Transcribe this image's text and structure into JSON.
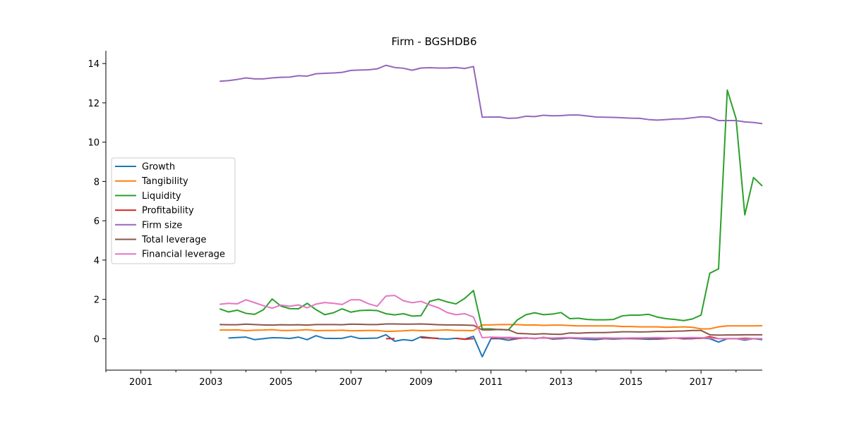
{
  "chart_data": {
    "type": "line",
    "title": "Firm - BGSHDB6",
    "xlabel": "",
    "ylabel": "",
    "xlim": [
      2000.0,
      2018.75
    ],
    "ylim": [
      -1.6,
      14.65
    ],
    "x_ticks": [
      "2001",
      "2003",
      "2005",
      "2007",
      "2009",
      "2011",
      "2013",
      "2015",
      "2017"
    ],
    "y_ticks": [
      "0",
      "2",
      "4",
      "6",
      "8",
      "10",
      "12",
      "14"
    ],
    "grid": false,
    "legend_position": "center-left",
    "series": [
      {
        "name": "Growth",
        "color": "#1f77b4",
        "x": [
          2003.5,
          2003.75,
          2004.0,
          2004.25,
          2004.5,
          2004.75,
          2005.0,
          2005.25,
          2005.5,
          2005.75,
          2006.0,
          2006.25,
          2006.5,
          2006.75,
          2007.0,
          2007.25,
          2007.5,
          2007.75,
          2008.0,
          2008.25,
          2008.5,
          2008.75,
          2009.0,
          2009.25,
          2009.5,
          2009.75,
          2010.0,
          2010.25,
          2010.5,
          2010.75,
          2011.0,
          2011.25,
          2011.5,
          2011.75,
          2012.0,
          2012.25,
          2012.5,
          2012.75,
          2013.0,
          2013.25,
          2013.5,
          2013.75,
          2014.0,
          2014.25,
          2014.5,
          2014.75,
          2015.0,
          2015.25,
          2015.5,
          2015.75,
          2016.0,
          2016.25,
          2016.5,
          2016.75,
          2017.0,
          2017.25,
          2017.5,
          2017.75,
          2018.0,
          2018.25,
          2018.5,
          2018.75
        ],
        "y": [
          0.03,
          0.06,
          0.08,
          -0.05,
          0.0,
          0.05,
          0.04,
          0.01,
          0.08,
          -0.05,
          0.15,
          0.02,
          0.01,
          0.02,
          0.12,
          0.01,
          0.02,
          0.03,
          0.2,
          -0.13,
          -0.05,
          -0.1,
          0.1,
          0.05,
          0.0,
          -0.02,
          0.02,
          -0.02,
          0.12,
          -0.92,
          0.0,
          0.0,
          -0.08,
          0.0,
          0.05,
          0.0,
          0.07,
          -0.02,
          0.0,
          0.03,
          0.0,
          -0.03,
          -0.05,
          0.0,
          -0.02,
          0.0,
          0.0,
          -0.01,
          -0.03,
          -0.02,
          0.0,
          0.04,
          -0.01,
          0.0,
          0.03,
          0.0,
          -0.17,
          0.0,
          0.0,
          -0.07,
          0.0,
          -0.05
        ]
      },
      {
        "name": "Tangibility",
        "color": "#ff7f0e",
        "x": [
          2003.25,
          2003.5,
          2003.75,
          2004.0,
          2004.25,
          2004.5,
          2004.75,
          2005.0,
          2005.25,
          2005.5,
          2005.75,
          2006.0,
          2006.25,
          2006.5,
          2006.75,
          2007.0,
          2007.25,
          2007.5,
          2007.75,
          2008.0,
          2008.25,
          2008.5,
          2008.75,
          2009.0,
          2009.25,
          2009.5,
          2009.75,
          2010.0,
          2010.25,
          2010.5,
          2010.75,
          2011.0,
          2011.25,
          2011.5,
          2011.75,
          2012.0,
          2012.25,
          2012.5,
          2012.75,
          2013.0,
          2013.25,
          2013.5,
          2013.75,
          2014.0,
          2014.25,
          2014.5,
          2014.75,
          2015.0,
          2015.25,
          2015.5,
          2015.75,
          2016.0,
          2016.25,
          2016.5,
          2016.75,
          2017.0,
          2017.25,
          2017.5,
          2017.75,
          2018.0,
          2018.25,
          2018.5,
          2018.75
        ],
        "y": [
          0.44,
          0.44,
          0.45,
          0.41,
          0.43,
          0.44,
          0.46,
          0.42,
          0.42,
          0.43,
          0.46,
          0.41,
          0.42,
          0.42,
          0.43,
          0.4,
          0.41,
          0.42,
          0.42,
          0.37,
          0.38,
          0.4,
          0.43,
          0.41,
          0.42,
          0.43,
          0.45,
          0.42,
          0.42,
          0.41,
          0.7,
          0.7,
          0.72,
          0.72,
          0.72,
          0.69,
          0.7,
          0.68,
          0.69,
          0.69,
          0.67,
          0.65,
          0.65,
          0.65,
          0.65,
          0.65,
          0.62,
          0.62,
          0.6,
          0.6,
          0.6,
          0.58,
          0.59,
          0.6,
          0.58,
          0.5,
          0.5,
          0.6,
          0.65,
          0.65,
          0.65,
          0.65,
          0.66
        ]
      },
      {
        "name": "Liquidity",
        "color": "#2ca02c",
        "x": [
          2003.25,
          2003.5,
          2003.75,
          2004.0,
          2004.25,
          2004.5,
          2004.75,
          2005.0,
          2005.25,
          2005.5,
          2005.75,
          2006.0,
          2006.25,
          2006.5,
          2006.75,
          2007.0,
          2007.25,
          2007.5,
          2007.75,
          2008.0,
          2008.25,
          2008.5,
          2008.75,
          2009.0,
          2009.25,
          2009.5,
          2009.75,
          2010.0,
          2010.25,
          2010.5,
          2010.75,
          2011.0,
          2011.25,
          2011.5,
          2011.75,
          2012.0,
          2012.25,
          2012.5,
          2012.75,
          2013.0,
          2013.25,
          2013.5,
          2013.75,
          2014.0,
          2014.25,
          2014.5,
          2014.75,
          2015.0,
          2015.25,
          2015.5,
          2015.75,
          2016.0,
          2016.25,
          2016.5,
          2016.75,
          2017.0,
          2017.25,
          2017.5,
          2017.75,
          2018.0,
          2018.25,
          2018.5,
          2018.75
        ],
        "y": [
          1.52,
          1.36,
          1.45,
          1.29,
          1.24,
          1.47,
          2.02,
          1.66,
          1.53,
          1.52,
          1.8,
          1.48,
          1.22,
          1.32,
          1.52,
          1.35,
          1.43,
          1.45,
          1.43,
          1.27,
          1.21,
          1.27,
          1.15,
          1.17,
          1.9,
          2.01,
          1.87,
          1.77,
          2.05,
          2.45,
          0.5,
          0.5,
          0.46,
          0.45,
          0.95,
          1.22,
          1.32,
          1.22,
          1.25,
          1.33,
          1.02,
          1.04,
          0.98,
          0.96,
          0.96,
          0.98,
          1.16,
          1.2,
          1.2,
          1.24,
          1.1,
          1.02,
          0.98,
          0.92,
          1.0,
          1.2,
          3.33,
          3.55,
          12.65,
          11.2,
          6.3,
          8.2,
          7.77
        ]
      },
      {
        "name": "Profitability",
        "color": "#d62728",
        "x": [
          2008.0,
          2008.25,
          null,
          2009.0,
          2009.25,
          2009.5,
          null,
          2010.0,
          2010.25,
          2010.5,
          null,
          2011.0,
          2011.25,
          2011.5,
          2011.75,
          2012.0,
          2012.25,
          2012.5,
          2012.75,
          2013.0,
          2013.25,
          2013.5,
          2013.75,
          2014.0,
          2014.25,
          2014.5,
          2014.75,
          2015.0,
          2015.25,
          2015.5,
          2015.75,
          2016.0,
          2016.25,
          2016.5,
          2016.75,
          2017.0,
          2017.25,
          2017.5,
          2017.75,
          2018.0,
          2018.25,
          2018.5,
          2018.75
        ],
        "y": [
          0.0,
          0.0,
          null,
          0.05,
          0.03,
          0.02,
          null,
          0.02,
          -0.03,
          0.0,
          null,
          0.03,
          0.05,
          0.03,
          0.02,
          0.03,
          0.02,
          0.04,
          0.02,
          0.03,
          0.05,
          0.03,
          0.03,
          0.02,
          0.02,
          0.02,
          0.02,
          0.02,
          0.02,
          0.03,
          0.02,
          0.02,
          0.03,
          0.02,
          0.03,
          0.02,
          0.1,
          0.0,
          0.0,
          0.0,
          0.02,
          0.0,
          0.0
        ]
      },
      {
        "name": "Firm size",
        "color": "#9467bd",
        "x": [
          2003.25,
          2003.5,
          2003.75,
          2004.0,
          2004.25,
          2004.5,
          2004.75,
          2005.0,
          2005.25,
          2005.5,
          2005.75,
          2006.0,
          2006.25,
          2006.5,
          2006.75,
          2007.0,
          2007.25,
          2007.5,
          2007.75,
          2008.0,
          2008.25,
          2008.5,
          2008.75,
          2009.0,
          2009.25,
          2009.5,
          2009.75,
          2010.0,
          2010.25,
          2010.5,
          2010.75,
          2011.0,
          2011.25,
          2011.5,
          2011.75,
          2012.0,
          2012.25,
          2012.5,
          2012.75,
          2013.0,
          2013.25,
          2013.5,
          2013.75,
          2014.0,
          2014.25,
          2014.5,
          2014.75,
          2015.0,
          2015.25,
          2015.5,
          2015.75,
          2016.0,
          2016.25,
          2016.5,
          2016.75,
          2017.0,
          2017.25,
          2017.5,
          2017.75,
          2018.0,
          2018.25,
          2018.5,
          2018.75
        ],
        "y": [
          13.1,
          13.13,
          13.19,
          13.27,
          13.22,
          13.22,
          13.27,
          13.3,
          13.31,
          13.38,
          13.36,
          13.48,
          13.5,
          13.52,
          13.55,
          13.65,
          13.67,
          13.68,
          13.73,
          13.91,
          13.8,
          13.76,
          13.66,
          13.77,
          13.79,
          13.77,
          13.77,
          13.8,
          13.75,
          13.85,
          11.27,
          11.28,
          11.28,
          11.21,
          11.23,
          11.32,
          11.3,
          11.37,
          11.34,
          11.35,
          11.38,
          11.38,
          11.33,
          11.28,
          11.27,
          11.26,
          11.24,
          11.22,
          11.21,
          11.15,
          11.12,
          11.15,
          11.18,
          11.19,
          11.24,
          11.29,
          11.27,
          11.1,
          11.1,
          11.1,
          11.03,
          11.0,
          10.94
        ]
      },
      {
        "name": "Total leverage",
        "color": "#8c564b",
        "x": [
          2003.25,
          2003.5,
          2003.75,
          2004.0,
          2004.25,
          2004.5,
          2004.75,
          2005.0,
          2005.25,
          2005.5,
          2005.75,
          2006.0,
          2006.25,
          2006.5,
          2006.75,
          2007.0,
          2007.25,
          2007.5,
          2007.75,
          2008.0,
          2008.25,
          2008.5,
          2008.75,
          2009.0,
          2009.25,
          2009.5,
          2009.75,
          2010.0,
          2010.25,
          2010.5,
          2010.75,
          2011.0,
          2011.25,
          2011.5,
          2011.75,
          2012.0,
          2012.25,
          2012.5,
          2012.75,
          2013.0,
          2013.25,
          2013.5,
          2013.75,
          2014.0,
          2014.25,
          2014.5,
          2014.75,
          2015.0,
          2015.25,
          2015.5,
          2015.75,
          2016.0,
          2016.25,
          2016.5,
          2016.75,
          2017.0,
          2017.25,
          2017.5,
          2017.75,
          2018.0,
          2018.25,
          2018.5,
          2018.75
        ],
        "y": [
          0.72,
          0.71,
          0.71,
          0.74,
          0.72,
          0.7,
          0.69,
          0.71,
          0.7,
          0.71,
          0.69,
          0.72,
          0.72,
          0.72,
          0.71,
          0.74,
          0.73,
          0.72,
          0.72,
          0.75,
          0.75,
          0.74,
          0.74,
          0.75,
          0.73,
          0.71,
          0.7,
          0.7,
          0.69,
          0.68,
          0.45,
          0.45,
          0.47,
          0.45,
          0.27,
          0.25,
          0.23,
          0.25,
          0.23,
          0.22,
          0.29,
          0.28,
          0.3,
          0.31,
          0.31,
          0.33,
          0.35,
          0.35,
          0.34,
          0.35,
          0.37,
          0.37,
          0.38,
          0.39,
          0.42,
          0.42,
          0.2,
          0.18,
          0.19,
          0.19,
          0.2,
          0.2,
          0.2
        ]
      },
      {
        "name": "Financial leverage",
        "color": "#e377c2",
        "x": [
          2003.25,
          2003.5,
          2003.75,
          2004.0,
          2004.25,
          2004.5,
          2004.75,
          2005.0,
          2005.25,
          2005.5,
          2005.75,
          2006.0,
          2006.25,
          2006.5,
          2006.75,
          2007.0,
          2007.25,
          2007.5,
          2007.75,
          2008.0,
          2008.25,
          2008.5,
          2008.75,
          2009.0,
          2009.25,
          2009.5,
          2009.75,
          2010.0,
          2010.25,
          2010.5,
          2010.75,
          2011.0,
          2011.25,
          2011.5,
          2011.75,
          2012.0,
          2012.25,
          2012.5,
          2012.75,
          2013.0,
          2013.25,
          2013.5,
          2013.75,
          2014.0,
          2014.25,
          2014.5,
          2014.75,
          2015.0,
          2015.25,
          2015.5,
          2015.75,
          2016.0,
          2016.25,
          2016.5,
          2016.75,
          2017.0,
          2017.25,
          2017.5,
          2017.75,
          2018.0,
          2018.25,
          2018.5,
          2018.75
        ],
        "y": [
          1.75,
          1.8,
          1.77,
          1.98,
          1.83,
          1.68,
          1.55,
          1.71,
          1.65,
          1.72,
          1.57,
          1.76,
          1.84,
          1.8,
          1.74,
          1.98,
          1.98,
          1.78,
          1.65,
          2.17,
          2.2,
          1.93,
          1.83,
          1.9,
          1.72,
          1.57,
          1.33,
          1.22,
          1.27,
          1.1,
          0.05,
          0.08,
          0.07,
          0.07,
          0.05,
          0.04,
          0.02,
          0.06,
          0.03,
          0.05,
          0.06,
          0.04,
          0.04,
          0.03,
          0.04,
          0.03,
          0.03,
          0.04,
          0.04,
          0.05,
          0.06,
          0.04,
          0.04,
          0.05,
          0.06,
          0.05,
          0.03,
          0.0,
          0.0,
          0.0,
          -0.02,
          0.0,
          0.0
        ]
      }
    ]
  }
}
